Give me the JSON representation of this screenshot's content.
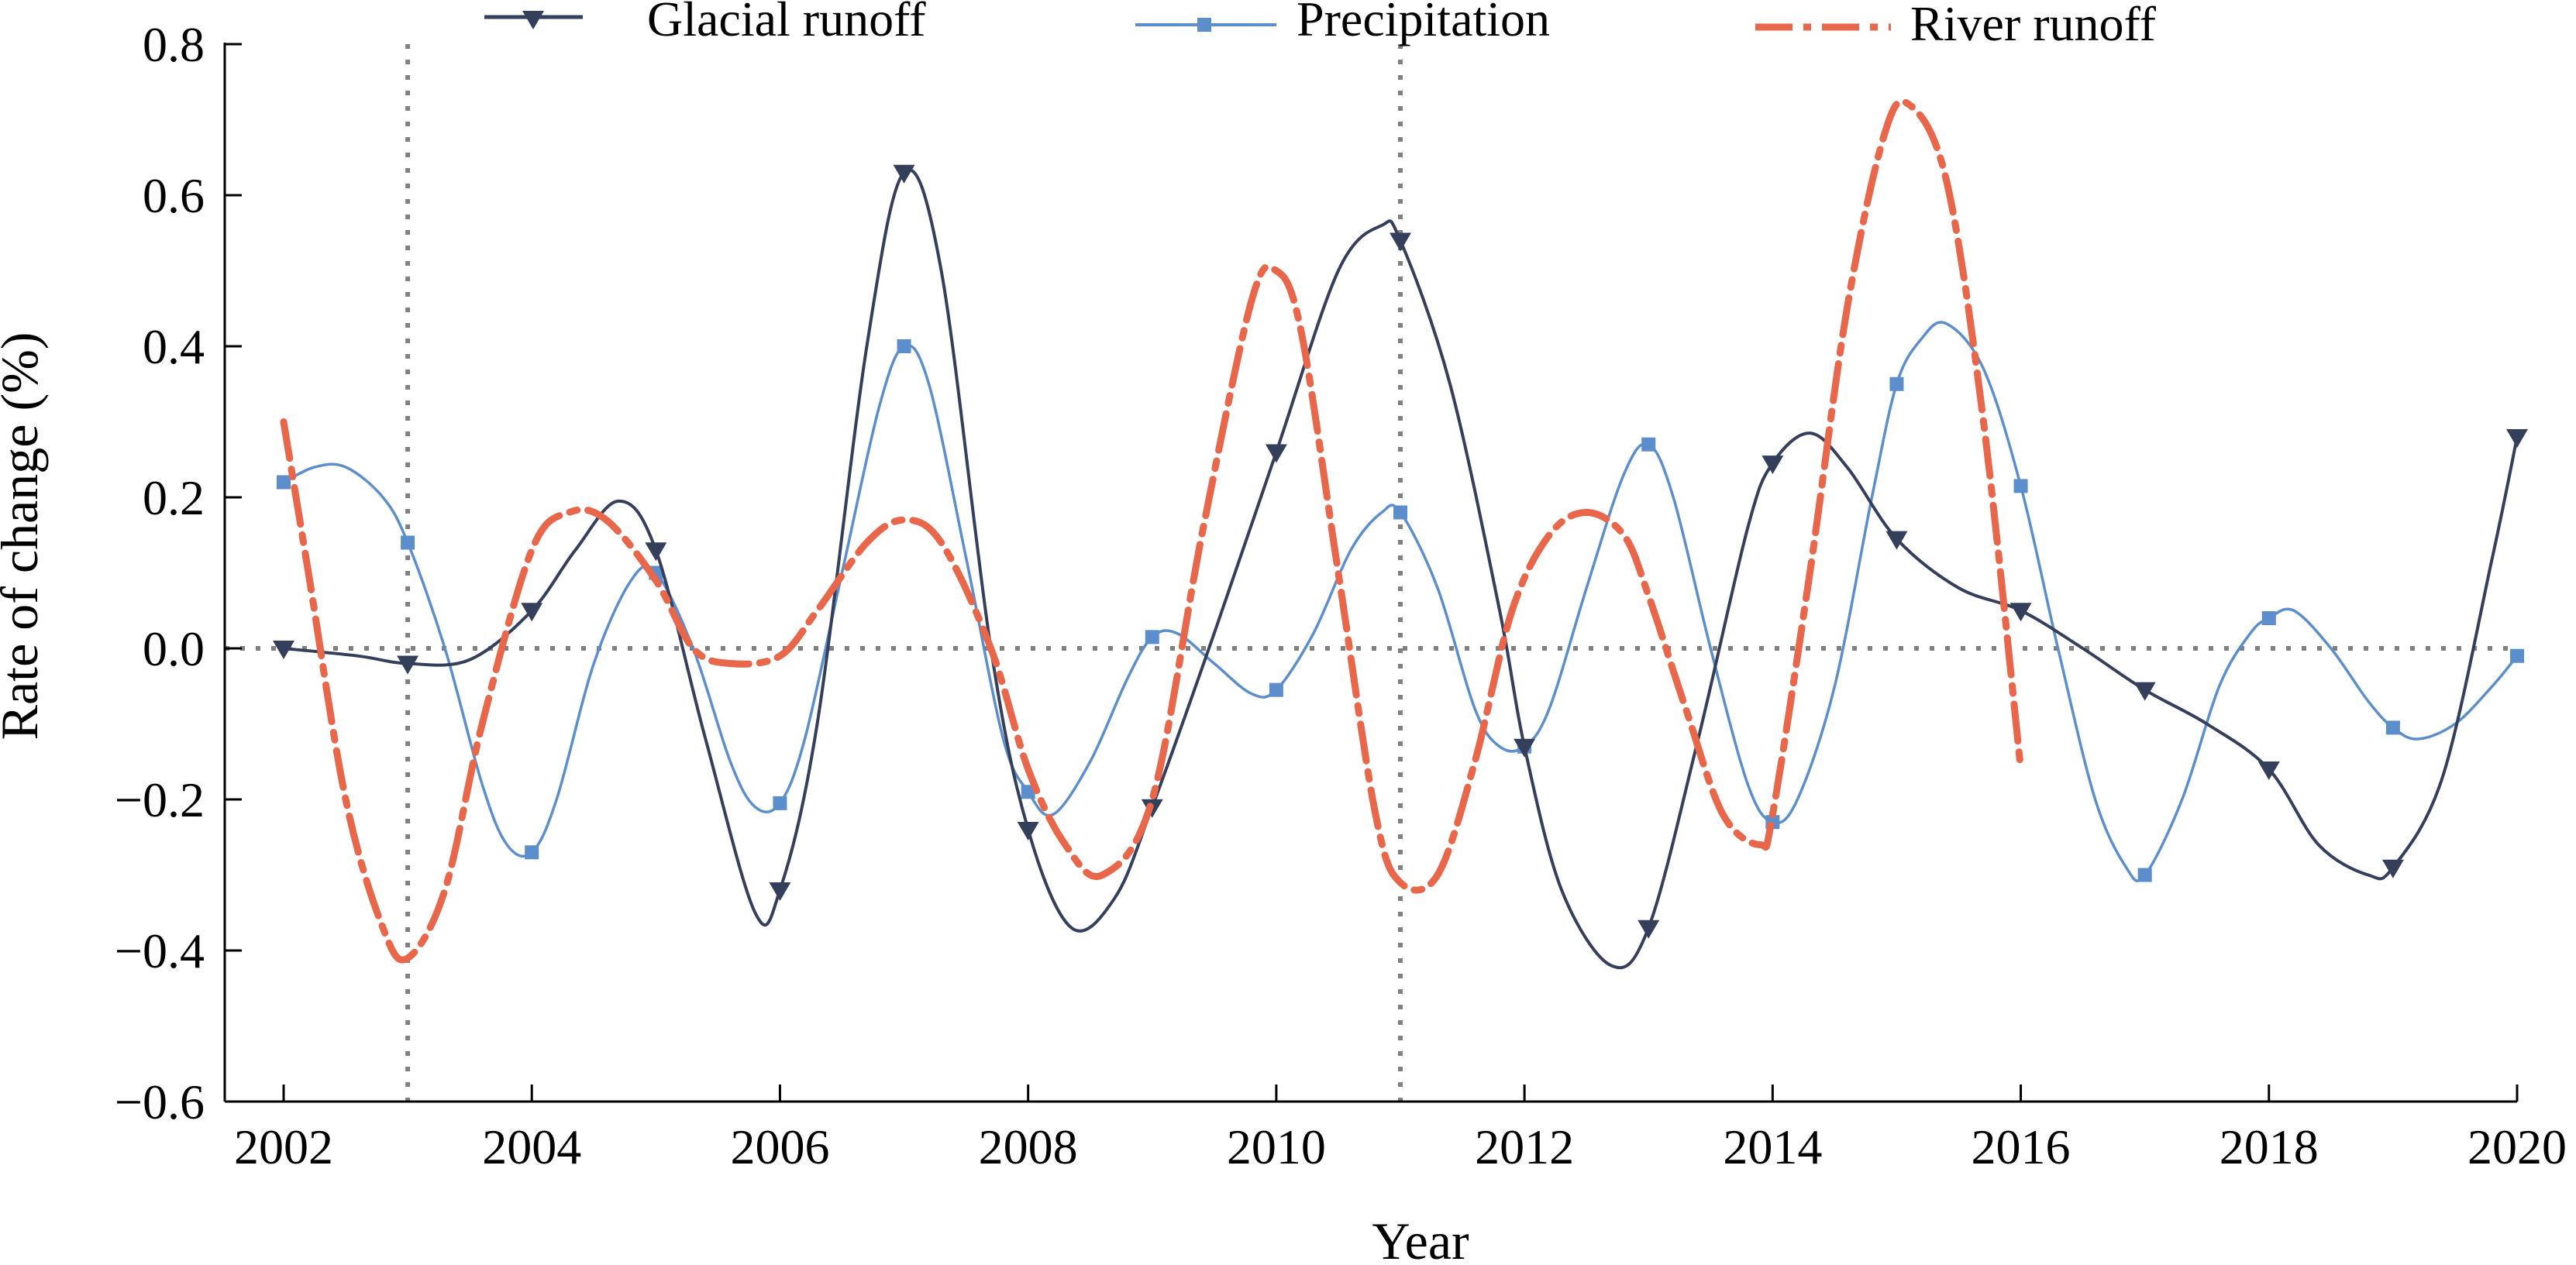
{
  "chart_data": {
    "type": "line",
    "title": "",
    "xlabel": "Year",
    "ylabel": "Rate of change (%)",
    "xlim": [
      2001.5,
      2020.1
    ],
    "ylim": [
      -0.6,
      0.8
    ],
    "xticks": [
      2002,
      2004,
      2006,
      2008,
      2010,
      2012,
      2014,
      2016,
      2018,
      2020
    ],
    "xtick_labels": [
      "2002",
      "2004",
      "2006",
      "2008",
      "2010",
      "2012",
      "2014",
      "2016",
      "2018",
      "2020"
    ],
    "yticks": [
      -0.6,
      -0.4,
      -0.2,
      0.0,
      0.2,
      0.4,
      0.6,
      0.8
    ],
    "ytick_labels": [
      "−0.6",
      "−0.4",
      "−0.2",
      "0.0",
      "0.2",
      "0.4",
      "0.6",
      "0.8"
    ],
    "reference_lines": {
      "horizontal": [
        0.0
      ],
      "vertical": [
        2003,
        2011
      ]
    },
    "legend_position": "top",
    "series": [
      {
        "name": "Glacial runoff",
        "color": "#343f5c",
        "marker": "triangle-down",
        "curve": [
          [
            2002,
            0.0
          ],
          [
            2002.6,
            -0.01
          ],
          [
            2003,
            -0.02
          ],
          [
            2003.5,
            -0.015
          ],
          [
            2004,
            0.05
          ],
          [
            2004.35,
            0.13
          ],
          [
            2004.7,
            0.195
          ],
          [
            2005,
            0.13
          ],
          [
            2005.4,
            -0.12
          ],
          [
            2005.8,
            -0.35
          ],
          [
            2006,
            -0.32
          ],
          [
            2006.3,
            -0.1
          ],
          [
            2006.7,
            0.4
          ],
          [
            2007,
            0.63
          ],
          [
            2007.3,
            0.5
          ],
          [
            2007.7,
            0.0
          ],
          [
            2008,
            -0.24
          ],
          [
            2008.35,
            -0.37
          ],
          [
            2008.7,
            -0.33
          ],
          [
            2009,
            -0.21
          ],
          [
            2009.5,
            0.02
          ],
          [
            2010,
            0.26
          ],
          [
            2010.5,
            0.5
          ],
          [
            2010.85,
            0.56
          ],
          [
            2011,
            0.54
          ],
          [
            2011.4,
            0.35
          ],
          [
            2011.8,
            0.05
          ],
          [
            2012,
            -0.13
          ],
          [
            2012.3,
            -0.32
          ],
          [
            2012.7,
            -0.42
          ],
          [
            2013,
            -0.37
          ],
          [
            2013.4,
            -0.12
          ],
          [
            2013.8,
            0.16
          ],
          [
            2014,
            0.245
          ],
          [
            2014.3,
            0.285
          ],
          [
            2014.6,
            0.24
          ],
          [
            2015,
            0.145
          ],
          [
            2015.5,
            0.08
          ],
          [
            2016,
            0.05
          ],
          [
            2016.5,
            0.0
          ],
          [
            2017,
            -0.055
          ],
          [
            2017.5,
            -0.1
          ],
          [
            2018,
            -0.16
          ],
          [
            2018.4,
            -0.26
          ],
          [
            2018.8,
            -0.3
          ],
          [
            2019,
            -0.29
          ],
          [
            2019.4,
            -0.17
          ],
          [
            2019.8,
            0.12
          ],
          [
            2020,
            0.28
          ]
        ],
        "marker_points": [
          [
            2002,
            0.0
          ],
          [
            2003,
            -0.02
          ],
          [
            2004,
            0.05
          ],
          [
            2005,
            0.13
          ],
          [
            2006,
            -0.32
          ],
          [
            2007,
            0.63
          ],
          [
            2008,
            -0.24
          ],
          [
            2009,
            -0.21
          ],
          [
            2010,
            0.26
          ],
          [
            2011,
            0.54
          ],
          [
            2012,
            -0.13
          ],
          [
            2013,
            -0.37
          ],
          [
            2014,
            0.245
          ],
          [
            2015,
            0.145
          ],
          [
            2016,
            0.05
          ],
          [
            2017,
            -0.055
          ],
          [
            2018,
            -0.16
          ],
          [
            2019,
            -0.29
          ],
          [
            2020,
            0.28
          ]
        ]
      },
      {
        "name": "Precipitation",
        "color": "#5b8ecb",
        "marker": "square",
        "curve": [
          [
            2002,
            0.22
          ],
          [
            2002.25,
            0.24
          ],
          [
            2002.5,
            0.24
          ],
          [
            2002.8,
            0.2
          ],
          [
            2003,
            0.14
          ],
          [
            2003.3,
            0.0
          ],
          [
            2003.6,
            -0.18
          ],
          [
            2003.8,
            -0.26
          ],
          [
            2004,
            -0.27
          ],
          [
            2004.2,
            -0.2
          ],
          [
            2004.5,
            -0.02
          ],
          [
            2004.8,
            0.09
          ],
          [
            2005,
            0.1
          ],
          [
            2005.3,
            0.0
          ],
          [
            2005.6,
            -0.15
          ],
          [
            2005.8,
            -0.21
          ],
          [
            2006,
            -0.205
          ],
          [
            2006.2,
            -0.12
          ],
          [
            2006.5,
            0.1
          ],
          [
            2006.8,
            0.32
          ],
          [
            2007,
            0.4
          ],
          [
            2007.2,
            0.35
          ],
          [
            2007.5,
            0.12
          ],
          [
            2007.8,
            -0.12
          ],
          [
            2008,
            -0.19
          ],
          [
            2008.2,
            -0.22
          ],
          [
            2008.5,
            -0.15
          ],
          [
            2008.8,
            -0.04
          ],
          [
            2009,
            0.015
          ],
          [
            2009.2,
            0.02
          ],
          [
            2009.5,
            -0.02
          ],
          [
            2009.8,
            -0.06
          ],
          [
            2010,
            -0.055
          ],
          [
            2010.3,
            0.02
          ],
          [
            2010.6,
            0.13
          ],
          [
            2010.85,
            0.18
          ],
          [
            2011,
            0.18
          ],
          [
            2011.3,
            0.08
          ],
          [
            2011.6,
            -0.08
          ],
          [
            2011.8,
            -0.13
          ],
          [
            2012,
            -0.13
          ],
          [
            2012.2,
            -0.08
          ],
          [
            2012.5,
            0.08
          ],
          [
            2012.8,
            0.23
          ],
          [
            2013,
            0.27
          ],
          [
            2013.2,
            0.2
          ],
          [
            2013.5,
            0.0
          ],
          [
            2013.8,
            -0.18
          ],
          [
            2014,
            -0.23
          ],
          [
            2014.2,
            -0.2
          ],
          [
            2014.5,
            -0.05
          ],
          [
            2014.8,
            0.2
          ],
          [
            2015,
            0.35
          ],
          [
            2015.2,
            0.41
          ],
          [
            2015.4,
            0.43
          ],
          [
            2015.7,
            0.37
          ],
          [
            2016,
            0.215
          ],
          [
            2016.3,
            0.0
          ],
          [
            2016.6,
            -0.2
          ],
          [
            2016.85,
            -0.29
          ],
          [
            2017,
            -0.3
          ],
          [
            2017.3,
            -0.2
          ],
          [
            2017.6,
            -0.05
          ],
          [
            2017.85,
            0.02
          ],
          [
            2018,
            0.04
          ],
          [
            2018.2,
            0.05
          ],
          [
            2018.5,
            0.0
          ],
          [
            2018.8,
            -0.07
          ],
          [
            2019,
            -0.105
          ],
          [
            2019.2,
            -0.12
          ],
          [
            2019.5,
            -0.1
          ],
          [
            2019.8,
            -0.05
          ],
          [
            2020,
            -0.01
          ]
        ],
        "marker_points": [
          [
            2002,
            0.22
          ],
          [
            2003,
            0.14
          ],
          [
            2004,
            -0.27
          ],
          [
            2005,
            0.1
          ],
          [
            2006,
            -0.205
          ],
          [
            2007,
            0.4
          ],
          [
            2008,
            -0.19
          ],
          [
            2009,
            0.015
          ],
          [
            2010,
            -0.055
          ],
          [
            2011,
            0.18
          ],
          [
            2012,
            -0.13
          ],
          [
            2013,
            0.27
          ],
          [
            2014,
            -0.23
          ],
          [
            2015,
            0.35
          ],
          [
            2016,
            0.215
          ],
          [
            2017,
            -0.3
          ],
          [
            2018,
            0.04
          ],
          [
            2019,
            -0.105
          ],
          [
            2020,
            -0.01
          ]
        ]
      },
      {
        "name": "River runoff",
        "color": "#e8674b",
        "marker": "none",
        "style": "dash-dot",
        "curve": [
          [
            2002,
            0.3
          ],
          [
            2002.2,
            0.1
          ],
          [
            2002.5,
            -0.2
          ],
          [
            2002.8,
            -0.37
          ],
          [
            2003,
            -0.41
          ],
          [
            2003.3,
            -0.32
          ],
          [
            2003.6,
            -0.1
          ],
          [
            2004,
            0.13
          ],
          [
            2004.3,
            0.18
          ],
          [
            2004.6,
            0.17
          ],
          [
            2005,
            0.09
          ],
          [
            2005.3,
            0.0
          ],
          [
            2005.6,
            -0.02
          ],
          [
            2006,
            -0.01
          ],
          [
            2006.3,
            0.05
          ],
          [
            2006.7,
            0.14
          ],
          [
            2007,
            0.17
          ],
          [
            2007.3,
            0.14
          ],
          [
            2007.7,
            0.0
          ],
          [
            2008,
            -0.16
          ],
          [
            2008.3,
            -0.26
          ],
          [
            2008.6,
            -0.3
          ],
          [
            2009,
            -0.2
          ],
          [
            2009.4,
            0.15
          ],
          [
            2009.8,
            0.46
          ],
          [
            2010,
            0.5
          ],
          [
            2010.2,
            0.42
          ],
          [
            2010.5,
            0.1
          ],
          [
            2010.8,
            -0.22
          ],
          [
            2011,
            -0.31
          ],
          [
            2011.3,
            -0.3
          ],
          [
            2011.6,
            -0.15
          ],
          [
            2011.9,
            0.05
          ],
          [
            2012.2,
            0.15
          ],
          [
            2012.5,
            0.18
          ],
          [
            2012.8,
            0.15
          ],
          [
            2013,
            0.07
          ],
          [
            2013.3,
            -0.08
          ],
          [
            2013.6,
            -0.22
          ],
          [
            2013.9,
            -0.26
          ],
          [
            2014,
            -0.22
          ],
          [
            2014.3,
            0.1
          ],
          [
            2014.6,
            0.45
          ],
          [
            2014.9,
            0.68
          ],
          [
            2015.1,
            0.72
          ],
          [
            2015.4,
            0.62
          ],
          [
            2015.7,
            0.3
          ],
          [
            2016,
            -0.16
          ]
        ]
      }
    ]
  }
}
